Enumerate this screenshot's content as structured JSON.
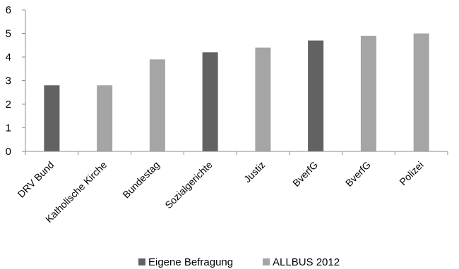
{
  "chart_data": {
    "type": "bar",
    "categories": [
      "DRV Bund",
      "Katholische Kirche",
      "Bundestag",
      "Sozialgerichte",
      "Justiz",
      "BverfG",
      "BverfG",
      "Polizei"
    ],
    "values": [
      2.8,
      2.8,
      3.9,
      4.2,
      4.4,
      4.7,
      4.9,
      5.0
    ],
    "groups": [
      "Eigene Befragung",
      "ALLBUS 2012",
      "ALLBUS 2012",
      "Eigene Befragung",
      "ALLBUS 2012",
      "Eigene Befragung",
      "ALLBUS 2012",
      "ALLBUS 2012"
    ],
    "legend": [
      {
        "name": "Eigene Befragung",
        "color": "#626262"
      },
      {
        "name": "ALLBUS 2012",
        "color": "#a5a5a5"
      }
    ],
    "ylim": [
      0,
      6
    ],
    "yticks": [
      "0",
      "1",
      "2",
      "3",
      "4",
      "5",
      "6"
    ],
    "grid": false,
    "legend_position": "bottom"
  }
}
